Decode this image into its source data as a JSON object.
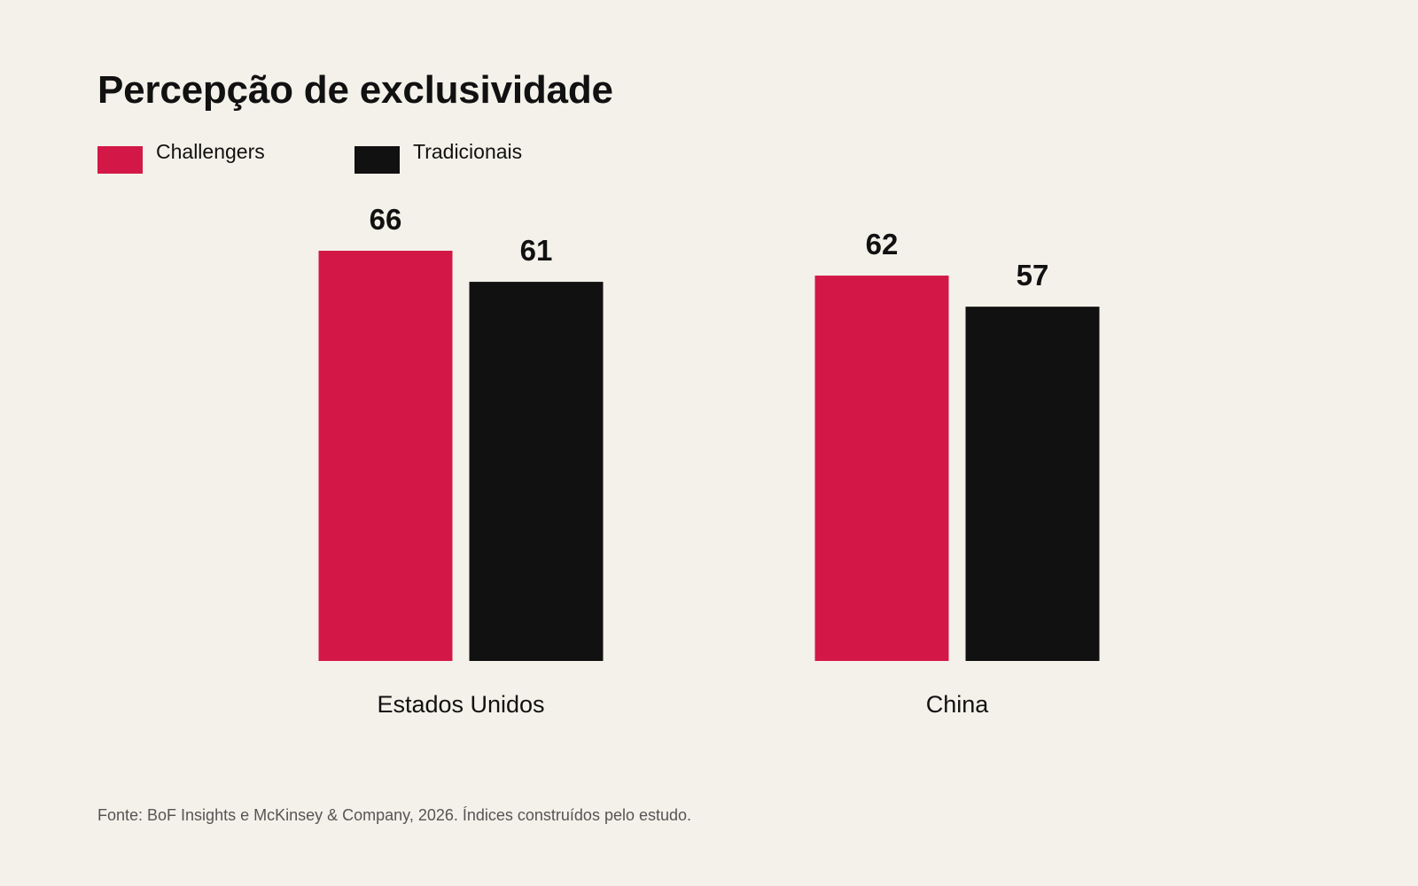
{
  "chart_data": {
    "type": "bar",
    "title": "Percepção de exclusividade",
    "categories": [
      "Estados Unidos",
      "China"
    ],
    "series": [
      {
        "name": "Challengers",
        "color": "#d31848",
        "values": [
          66,
          62
        ]
      },
      {
        "name": "Tradicionais",
        "color": "#111111",
        "values": [
          61,
          57
        ]
      }
    ],
    "ylim": [
      0,
      66
    ],
    "grid": false,
    "legend_position": "top-left",
    "value_labels": true
  },
  "source_note": "Fonte: BoF Insights e McKinsey & Company, 2026. Índices construídos pelo estudo."
}
